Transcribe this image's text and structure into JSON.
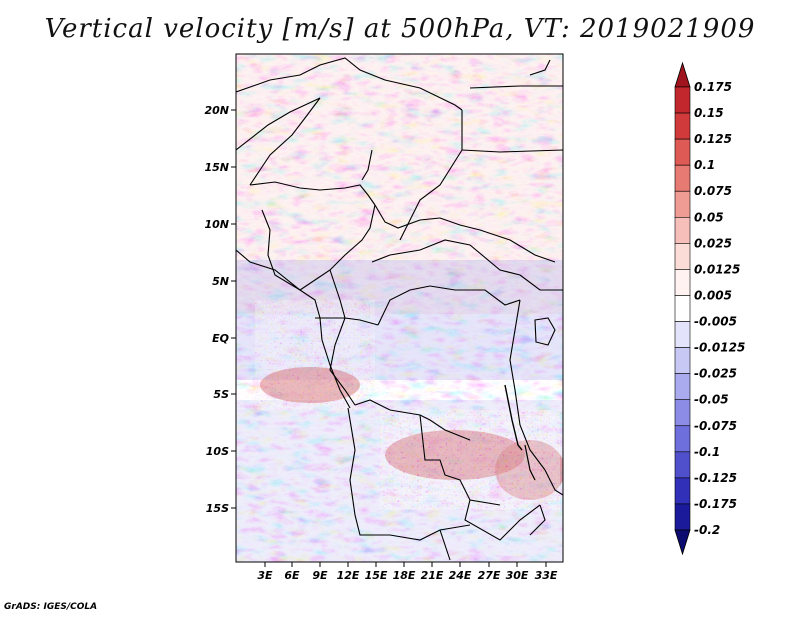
{
  "title": "Vertical velocity [m/s] at 500hPa, VT: 2019021909",
  "credit": "GrADS: IGES/COLA",
  "lat_labels": [
    "20N",
    "15N",
    "10N",
    "5N",
    "EQ",
    "5S",
    "10S",
    "15S"
  ],
  "lon_labels": [
    "3E",
    "6E",
    "9E",
    "12E",
    "15E",
    "18E",
    "21E",
    "24E",
    "27E",
    "30E",
    "33E"
  ],
  "colorbar": {
    "levels": [
      "0.175",
      "0.15",
      "0.125",
      "0.1",
      "0.075",
      "0.05",
      "0.025",
      "0.0125",
      "0.005",
      "-0.005",
      "-0.0125",
      "-0.025",
      "-0.05",
      "-0.075",
      "-0.1",
      "-0.125",
      "-0.175",
      "-0.2"
    ],
    "colors": [
      "#a0141e",
      "#c1272d",
      "#d13a3a",
      "#de5a55",
      "#e77a72",
      "#ef9c95",
      "#f6bfb9",
      "#fbdcd7",
      "#fff2f0",
      "#ffffff",
      "#e3e3fb",
      "#c8c8f5",
      "#aaaaee",
      "#8c8ce6",
      "#6e6edc",
      "#5050cc",
      "#3030b8",
      "#1a1a9a",
      "#0c0c70"
    ]
  }
}
